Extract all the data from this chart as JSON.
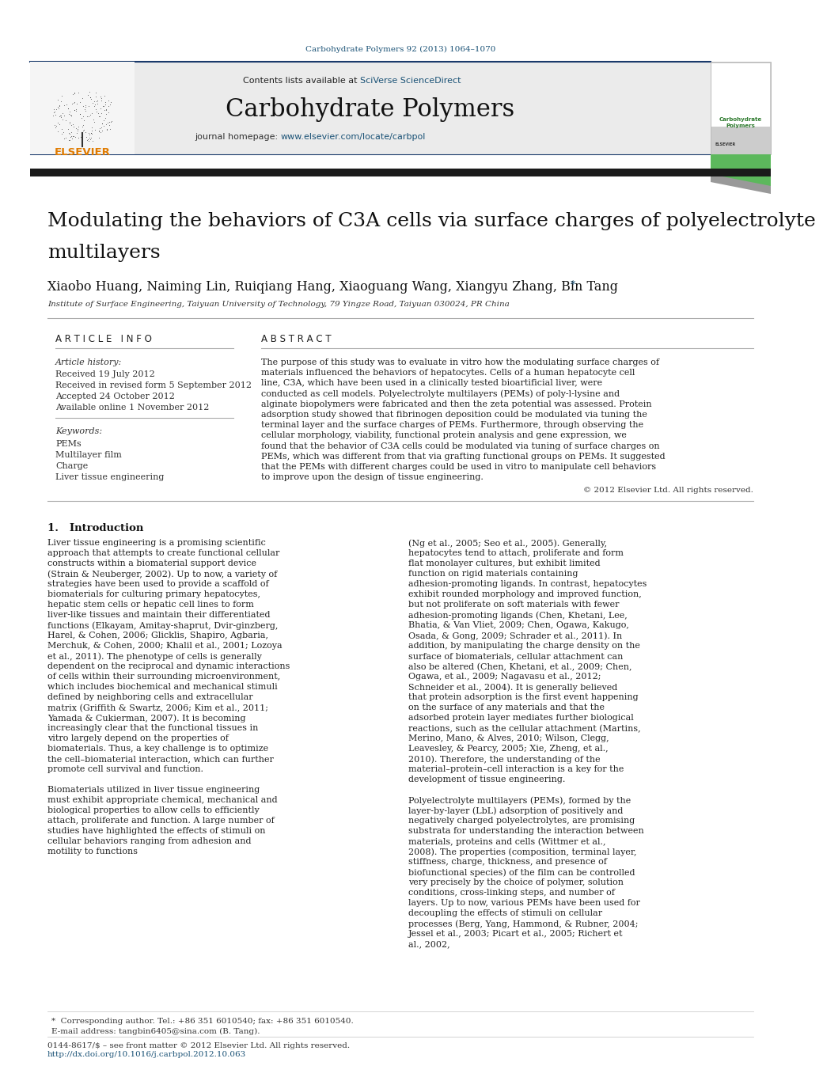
{
  "fig_width": 9.92,
  "fig_height": 13.23,
  "bg_color": "#ffffff",
  "journal_ref": "Carbohydrate Polymers 92 (2013) 1064–1070",
  "journal_ref_color": "#1a5276",
  "contents_text": "Contents lists available at ",
  "sciverse_text": "SciVerse ScienceDirect",
  "journal_name": "Carbohydrate Polymers",
  "journal_homepage": "journal homepage: ",
  "journal_url": "www.elsevier.com/locate/carbpol",
  "header_bg": "#ebebeb",
  "header_border_color": "#1a3a6b",
  "black_bar_color": "#1a1a1a",
  "article_title_line1": "Modulating the behaviors of C3A cells via surface charges of polyelectrolyte",
  "article_title_line2": "multilayers",
  "authors": "Xiaobo Huang, Naiming Lin, Ruiqiang Hang, Xiaoguang Wang, Xiangyu Zhang, Bin Tang",
  "affiliation": "Institute of Surface Engineering, Taiyuan University of Technology, 79 Yingze Road, Taiyuan 030024, PR China",
  "article_info_title": "A R T I C L E   I N F O",
  "article_history_title": "Article history:",
  "received": "Received 19 July 2012",
  "revised": "Received in revised form 5 September 2012",
  "accepted": "Accepted 24 October 2012",
  "available": "Available online 1 November 2012",
  "keywords_title": "Keywords:",
  "keywords": [
    "PEMs",
    "Multilayer film",
    "Charge",
    "Liver tissue engineering"
  ],
  "abstract_title": "A B S T R A C T",
  "abstract_text": "The purpose of this study was to evaluate in vitro how the modulating surface charges of materials influenced the behaviors of hepatocytes. Cells of a human hepatocyte cell line, C3A, which have been used in a clinically tested bioartificial liver, were conducted as cell models. Polyelectrolyte multilayers (PEMs) of poly-l-lysine and alginate biopolymers were fabricated and then the zeta potential was assessed. Protein adsorption study showed that fibrinogen deposition could be modulated via tuning the terminal layer and the surface charges of PEMs. Furthermore, through observing the cellular morphology, viability, functional protein analysis and gene expression, we found that the behavior of C3A cells could be modulated via tuning of surface charges on PEMs, which was different from that via grafting functional groups on PEMs. It suggested that the PEMs with different charges could be used in vitro to manipulate cell behaviors to improve upon the design of tissue engineering.",
  "copyright": "© 2012 Elsevier Ltd. All rights reserved.",
  "intro_title": "1.   Introduction",
  "intro_col1": "Liver tissue engineering is a promising scientific approach that attempts to create functional cellular constructs within a biomaterial support device (Strain & Neuberger, 2002). Up to now, a variety of strategies have been used to provide a scaffold of biomaterials for culturing primary hepatocytes, hepatic stem cells or hepatic cell lines to form liver-like tissues and maintain their differentiated functions (Elkayam, Amitay-shaprut, Dvir-ginzberg, Harel, & Cohen, 2006; Glicklis, Shapiro, Agbaria, Merchuk, & Cohen, 2000; Khalil et al., 2001; Lozoya et al., 2011). The phenotype of cells is generally dependent on the reciprocal and dynamic interactions of cells within their surrounding microenvironment, which includes biochemical and mechanical stimuli defined by neighboring cells and extracellular matrix (Griffith & Swartz, 2006; Kim et al., 2011; Yamada & Cukierman, 2007). It is becoming increasingly clear that the functional tissues in vitro largely depend on the properties of biomaterials. Thus, a key challenge is to optimize the cell–biomaterial interaction, which can further promote cell survival and function.\n    Biomaterials utilized in liver tissue engineering must exhibit appropriate chemical, mechanical and biological properties to allow cells to efficiently attach, proliferate and function. A large number of studies have highlighted the effects of stimuli on cellular behaviors ranging from adhesion and motility to functions",
  "intro_col2": "(Ng et al., 2005; Seo et al., 2005). Generally, hepatocytes tend to attach, proliferate and form flat monolayer cultures, but exhibit limited function on rigid materials containing adhesion-promoting ligands. In contrast, hepatocytes exhibit rounded morphology and improved function, but not proliferate on soft materials with fewer adhesion-promoting ligands (Chen, Khetani, Lee, Bhatia, & Van Vliet, 2009; Chen, Ogawa, Kakugo, Osada, & Gong, 2009; Schrader et al., 2011). In addition, by manipulating the charge density on the surface of biomaterials, cellular attachment can also be altered (Chen, Khetani, et al., 2009; Chen, Ogawa, et al., 2009; Nagavasu et al., 2012; Schneider et al., 2004). It is generally believed that protein adsorption is the first event happening on the surface of any materials and that the adsorbed protein layer mediates further biological reactions, such as the cellular attachment (Martins, Merino, Mano, & Alves, 2010; Wilson, Clegg, Leavesley, & Pearcy, 2005; Xie, Zheng, et al., 2010). Therefore, the understanding of the material–protein–cell interaction is a key for the development of tissue engineering.\n    Polyelectrolyte multilayers (PEMs), formed by the layer-by-layer (LbL) adsorption of positively and negatively charged polyelectrolytes, are promising substrata for understanding the interaction between materials, proteins and cells (Wittmer et al., 2008). The properties (composition, terminal layer, stiffness, charge, thickness, and presence of biofunctional species) of the film can be controlled very precisely by the choice of polymer, solution conditions, cross-linking steps, and number of layers. Up to now, various PEMs have been used for decoupling the effects of stimuli on cellular processes (Berg, Yang, Hammond, & Rubner, 2004; Jessel et al., 2003; Picart et al., 2005; Richert et al., 2002,",
  "footer_text1": "*  Corresponding author. Tel.: +86 351 6010540; fax: +86 351 6010540.",
  "footer_text2": "E-mail address: tangbin6405@sina.com (B. Tang).",
  "footer_line1": "0144-8617/$ – see front matter © 2012 Elsevier Ltd. All rights reserved.",
  "footer_line2": "http://dx.doi.org/10.1016/j.carbpol.2012.10.063",
  "link_color": "#1a5276",
  "ref_color": "#2980b9",
  "separator_color": "#333333"
}
